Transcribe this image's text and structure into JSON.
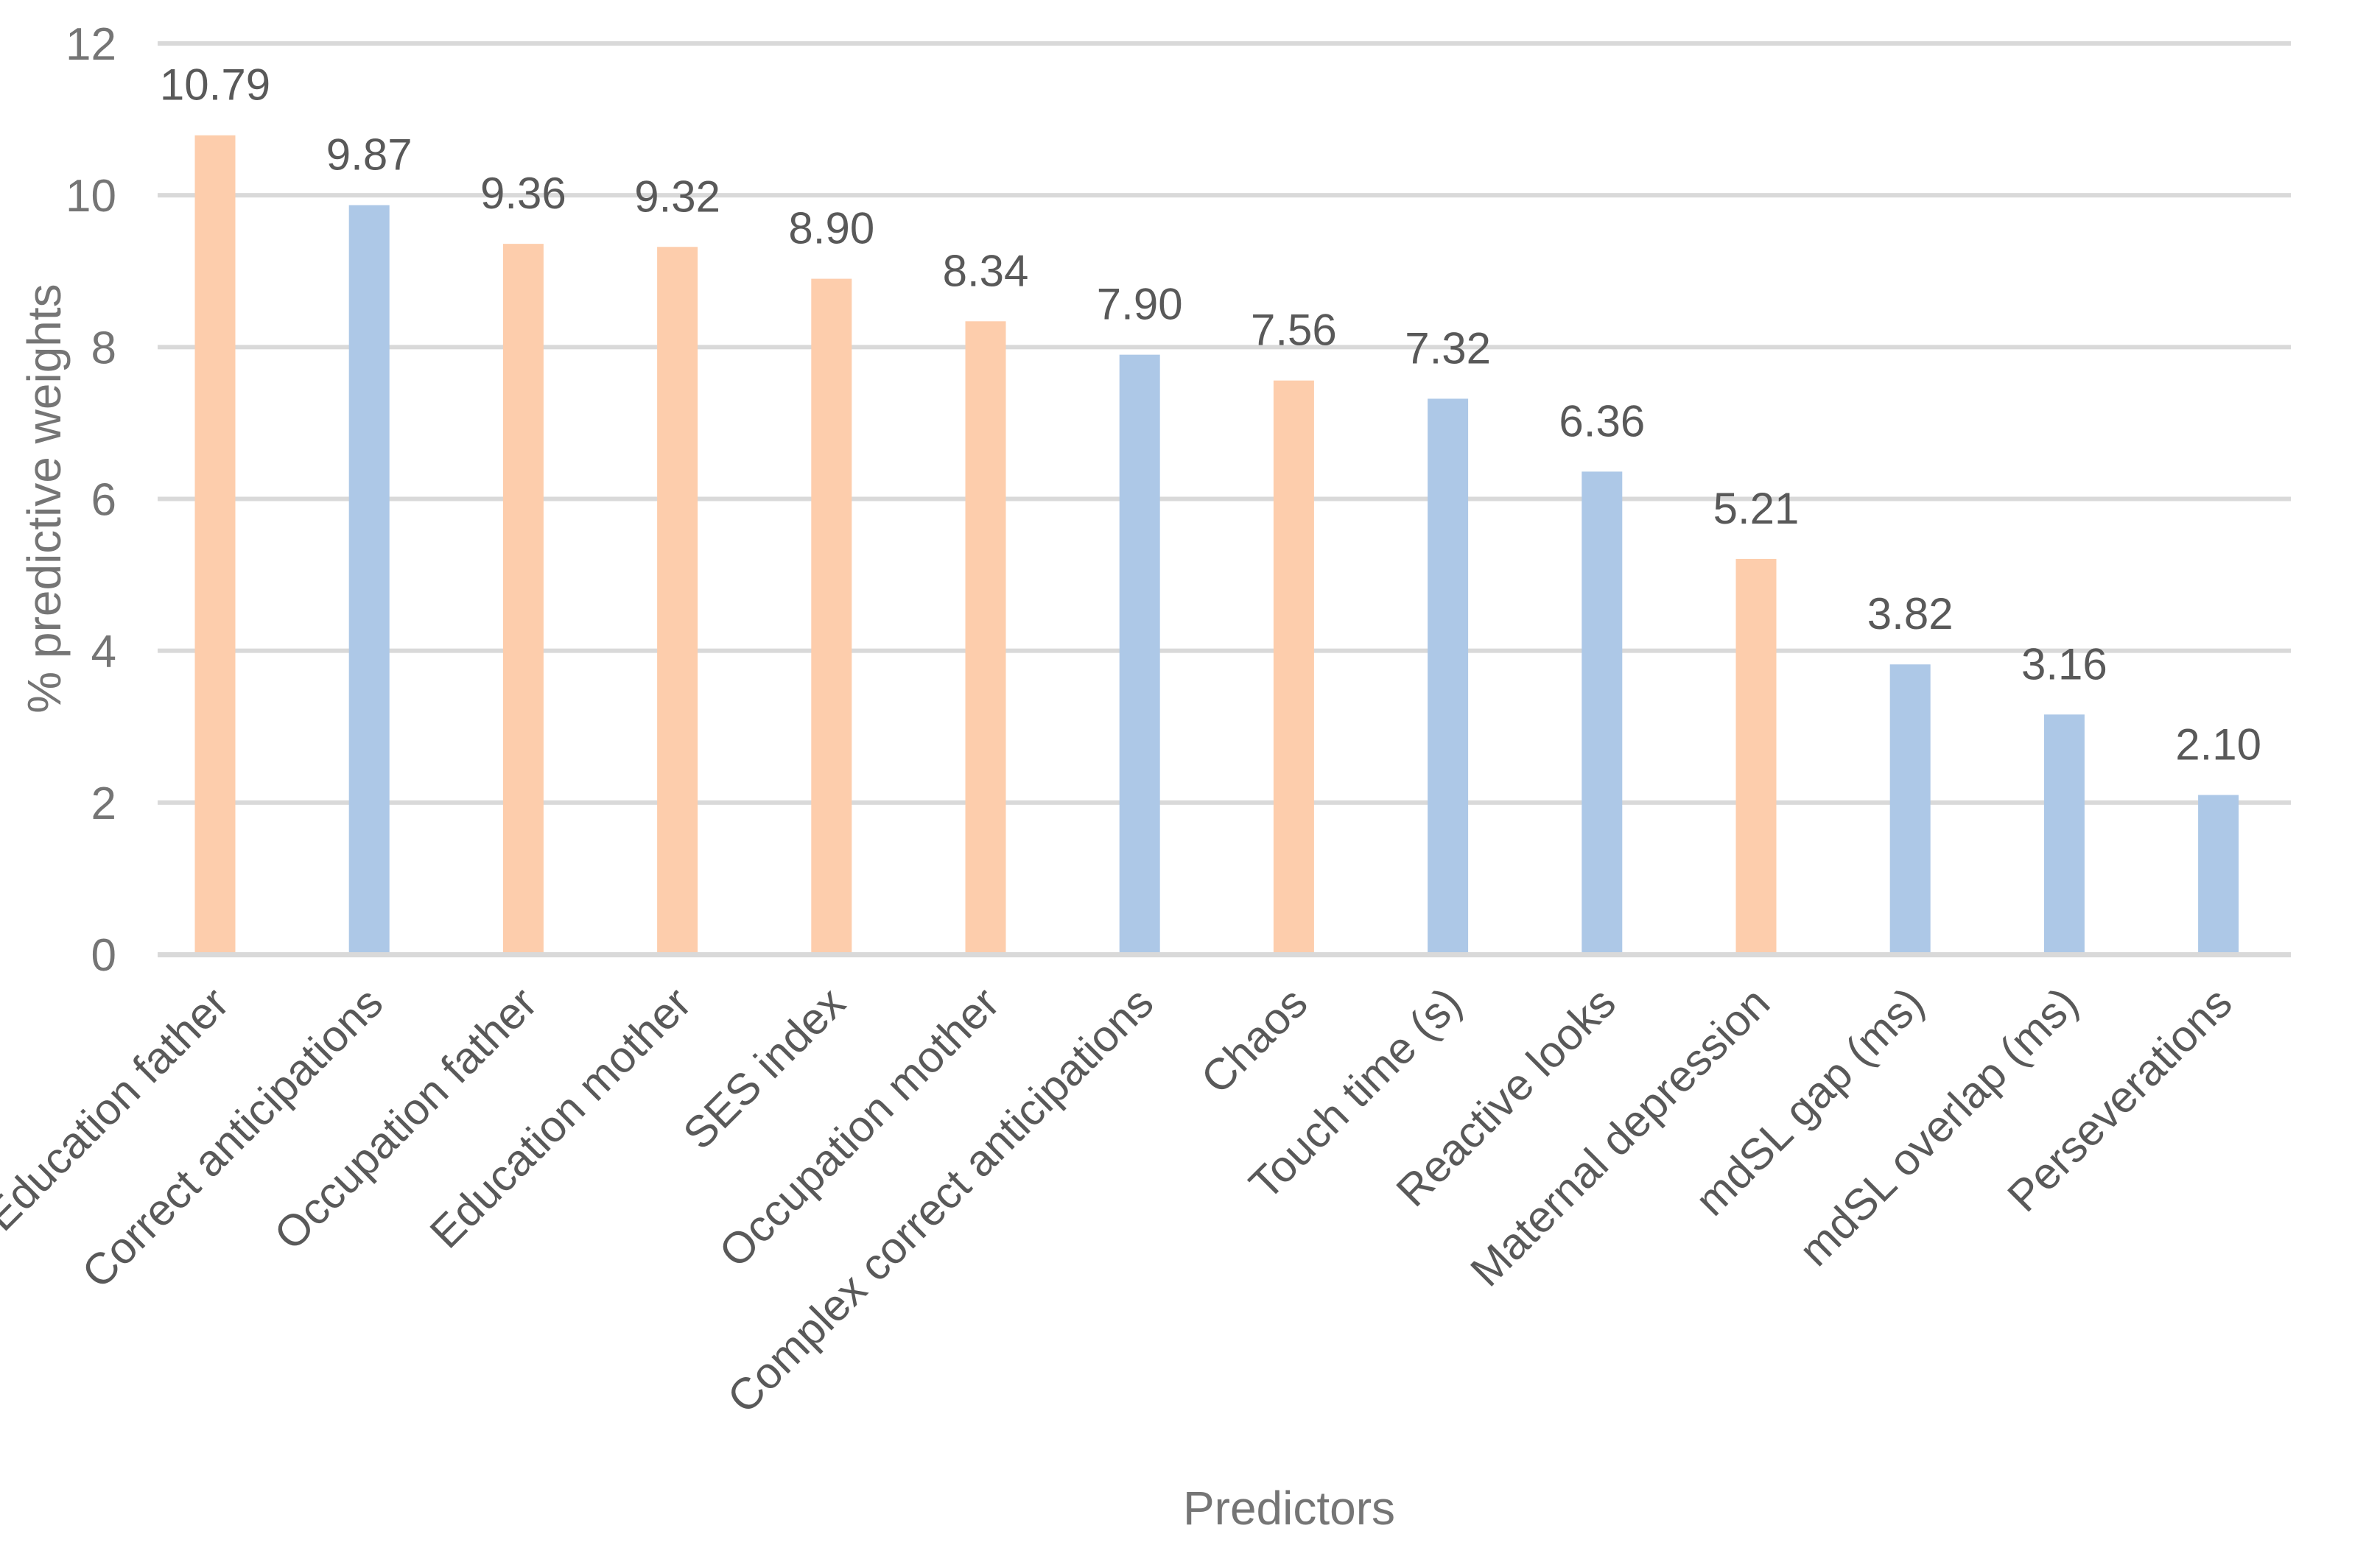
{
  "chart_data": {
    "type": "bar",
    "title": "",
    "xlabel": "Predictors",
    "ylabel": "% predictive weights",
    "ylim": [
      0,
      12
    ],
    "yticks": [
      0,
      2,
      4,
      6,
      8,
      10,
      12
    ],
    "grid": true,
    "legend": "none",
    "colors": {
      "peach": "#FDCDAC",
      "blue": "#ADC8E7",
      "grid": "#D9D9D9"
    },
    "categories": [
      "Education father",
      "Correct anticipations",
      "Occupation father",
      "Education mother",
      "SES index",
      "Occupation mother",
      "Complex correct anticipations",
      "Chaos",
      "Touch time (s)",
      "Reactive looks",
      "Maternal depression",
      "mdSL gap (ms)",
      "mdSL overlap (ms)",
      "Perseverations"
    ],
    "values": [
      10.79,
      9.87,
      9.36,
      9.32,
      8.9,
      8.34,
      7.9,
      7.56,
      7.32,
      6.36,
      5.21,
      3.82,
      3.16,
      2.1
    ],
    "data_labels": [
      "10.79",
      "9.87",
      "9.36",
      "9.32",
      "8.90",
      "8.34",
      "7.90",
      "7.56",
      "7.32",
      "6.36",
      "5.21",
      "3.82",
      "3.16",
      "2.10"
    ],
    "bar_colors": [
      "peach",
      "blue",
      "peach",
      "peach",
      "peach",
      "peach",
      "blue",
      "peach",
      "blue",
      "blue",
      "peach",
      "blue",
      "blue",
      "blue"
    ]
  }
}
